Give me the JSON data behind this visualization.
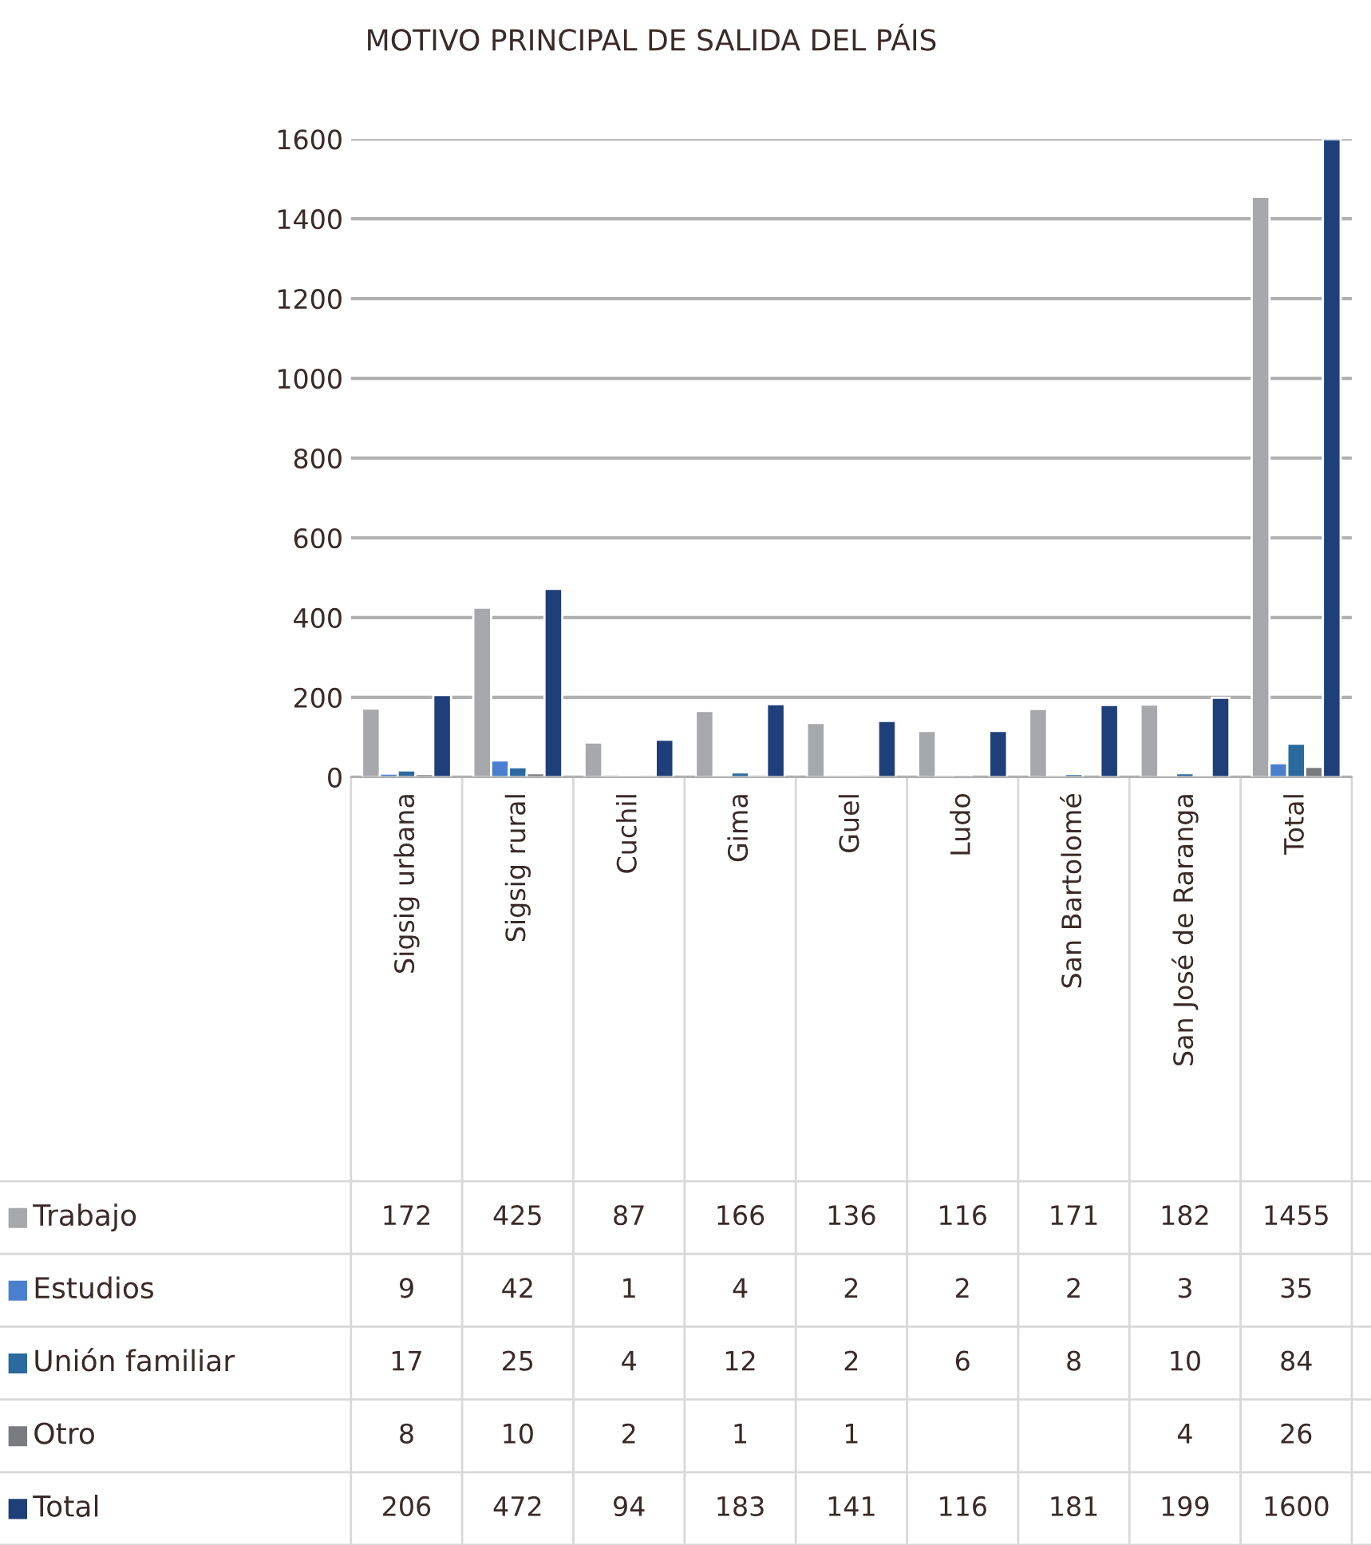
{
  "chart_data": {
    "type": "bar",
    "title": "MOTIVO PRINCIPAL DE SALIDA DEL PÁIS",
    "categories": [
      "Sigsig urbana",
      "Sigsig rural",
      "Cuchil",
      "Gima",
      "Guel",
      "Ludo",
      "San Bartolomé",
      "San José de Raranga",
      "Total"
    ],
    "series": [
      {
        "name": "Trabajo",
        "color": "#a6a8ab",
        "values": [
          172,
          425,
          87,
          166,
          136,
          116,
          171,
          182,
          1455
        ]
      },
      {
        "name": "Estudios",
        "color": "#4a7fd0",
        "values": [
          9,
          42,
          1,
          4,
          2,
          2,
          2,
          3,
          35
        ]
      },
      {
        "name": "Unión familiar",
        "color": "#2a6a9e",
        "values": [
          17,
          25,
          4,
          12,
          2,
          6,
          8,
          10,
          84
        ]
      },
      {
        "name": "Otro",
        "color": "#7a7b7e",
        "values": [
          8,
          10,
          2,
          1,
          1,
          null,
          null,
          4,
          26
        ]
      },
      {
        "name": "Total",
        "color": "#1f3f7a",
        "values": [
          206,
          472,
          94,
          183,
          141,
          116,
          181,
          199,
          1600
        ]
      }
    ],
    "ylim": [
      0,
      1600
    ],
    "yticks": [
      0,
      200,
      400,
      600,
      800,
      1000,
      1200,
      1400,
      1600
    ],
    "grid": "y",
    "data_labels": true,
    "legend": "bottom left"
  }
}
